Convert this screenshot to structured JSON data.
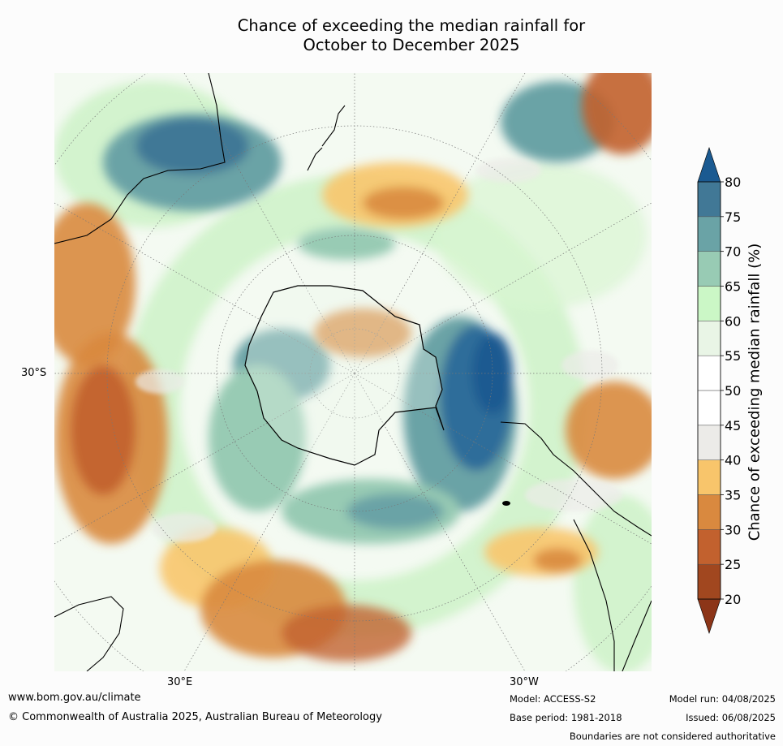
{
  "title": {
    "line1": "Chance of exceeding the median rainfall for",
    "line2": "October to December 2025"
  },
  "axes": {
    "lat_label": "30°S",
    "lon_left": "30°E",
    "lon_right": "30°W"
  },
  "colorbar": {
    "label": "Chance of exceeding median rainfall (%)",
    "ticks": [
      "20",
      "25",
      "30",
      "35",
      "40",
      "45",
      "50",
      "55",
      "60",
      "65",
      "70",
      "75",
      "80"
    ],
    "colors": [
      "#a1471f",
      "#c2612e",
      "#d9893f",
      "#f8c56b",
      "#ecebe8",
      "#ffffff",
      "#ffffff",
      "#e9f5e6",
      "#cbf7c6",
      "#98cbb4",
      "#6aa3a6",
      "#417896"
    ],
    "under_color": "#8c3518",
    "over_color": "#1b5a91"
  },
  "footer": {
    "url": "www.bom.gov.au/climate",
    "copyright": "© Commonwealth of Australia 2025, Australian Bureau of Meteorology",
    "model": "Model: ACCESS-S2",
    "base_period": "Base period: 1981-2018",
    "model_run": "Model run: 04/08/2025",
    "issued": "Issued: 06/08/2025",
    "disclaimer": "Boundaries are not considered authoritative"
  }
}
